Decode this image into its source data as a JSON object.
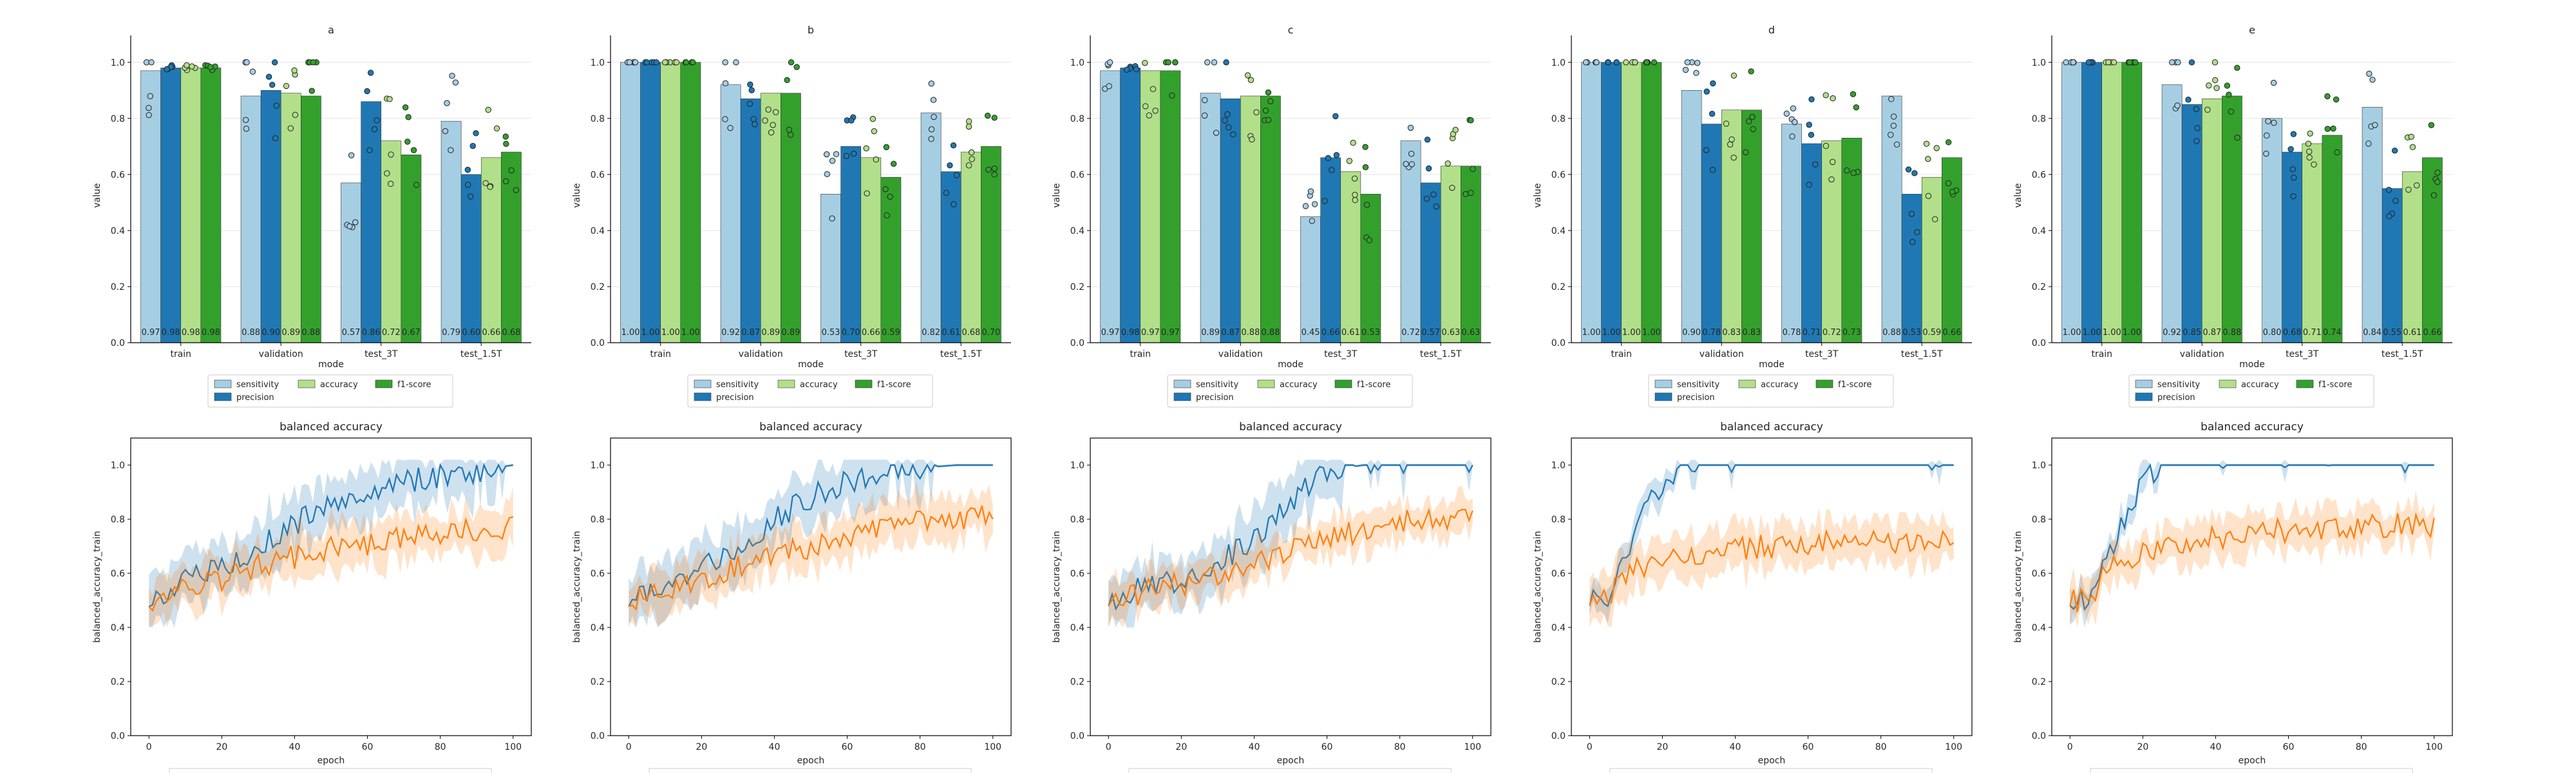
{
  "colors": {
    "sensitivity": "#a6cee3",
    "precision": "#1f78b4",
    "accuracy": "#b2df8a",
    "f1-score": "#33a02c",
    "line_train": "#1f77b4",
    "line_test": "#ff7f0e"
  },
  "bar_axes": {
    "ylabel": "value",
    "xlabel": "mode",
    "categories": [
      "train",
      "validation",
      "test_3T",
      "test_1.5T"
    ],
    "yticks": [
      "0.0",
      "0.2",
      "0.4",
      "0.6",
      "0.8",
      "1.0"
    ],
    "legend": [
      "sensitivity",
      "precision",
      "accuracy",
      "f1-score"
    ]
  },
  "line_axes": {
    "title": "balanced accuracy",
    "xlabel": "epoch",
    "ylabel": "balanced_accuracy_train",
    "xticks": [
      "0",
      "20",
      "40",
      "60",
      "80",
      "100"
    ],
    "yticks": [
      "0.0",
      "0.2",
      "0.4",
      "0.6",
      "0.8",
      "1.0"
    ]
  },
  "chart_data": [
    {
      "type": "bar",
      "panel": "a",
      "title": "a",
      "ylim": [
        0,
        1.05
      ],
      "categories": [
        "train",
        "validation",
        "test_3T",
        "test_1.5T"
      ],
      "series": [
        {
          "name": "sensitivity",
          "values": [
            0.97,
            0.88,
            0.57,
            0.79
          ]
        },
        {
          "name": "precision",
          "values": [
            0.98,
            0.9,
            0.86,
            0.6
          ]
        },
        {
          "name": "accuracy",
          "values": [
            0.98,
            0.89,
            0.72,
            0.66
          ]
        },
        {
          "name": "f1-score",
          "values": [
            0.98,
            0.88,
            0.67,
            0.68
          ]
        }
      ],
      "labels": [
        "0.97",
        "0.98",
        "0.98",
        "0.98",
        "0.88",
        "0.90",
        "0.89",
        "0.88",
        "0.57",
        "0.86",
        "0.72",
        "0.67",
        "0.79",
        "0.60",
        "0.66",
        "0.68"
      ]
    },
    {
      "type": "bar",
      "panel": "b",
      "title": "b",
      "ylim": [
        0,
        1.05
      ],
      "categories": [
        "train",
        "validation",
        "test_3T",
        "test_1.5T"
      ],
      "series": [
        {
          "name": "sensitivity",
          "values": [
            1.0,
            0.92,
            0.53,
            0.82
          ]
        },
        {
          "name": "precision",
          "values": [
            1.0,
            0.87,
            0.7,
            0.61
          ]
        },
        {
          "name": "accuracy",
          "values": [
            1.0,
            0.89,
            0.66,
            0.68
          ]
        },
        {
          "name": "f1-score",
          "values": [
            1.0,
            0.89,
            0.59,
            0.7
          ]
        }
      ],
      "labels": [
        "1.00",
        "1.00",
        "1.00",
        "1.00",
        "0.92",
        "0.87",
        "0.89",
        "0.89",
        "0.53",
        "0.70",
        "0.66",
        "0.59",
        "0.82",
        "0.61",
        "0.68",
        "0.70"
      ]
    },
    {
      "type": "bar",
      "panel": "c",
      "title": "c",
      "ylim": [
        0,
        1.05
      ],
      "categories": [
        "train",
        "validation",
        "test_3T",
        "test_1.5T"
      ],
      "series": [
        {
          "name": "sensitivity",
          "values": [
            0.97,
            0.89,
            0.45,
            0.72
          ]
        },
        {
          "name": "precision",
          "values": [
            0.98,
            0.87,
            0.66,
            0.57
          ]
        },
        {
          "name": "accuracy",
          "values": [
            0.97,
            0.88,
            0.61,
            0.63
          ]
        },
        {
          "name": "f1-score",
          "values": [
            0.97,
            0.88,
            0.53,
            0.63
          ]
        }
      ],
      "labels": [
        "0.97",
        "0.98",
        "0.97",
        "0.97",
        "0.89",
        "0.87",
        "0.88",
        "0.88",
        "0.45",
        "0.66",
        "0.61",
        "0.53",
        "0.72",
        "0.57",
        "0.63",
        "0.63"
      ]
    },
    {
      "type": "bar",
      "panel": "d",
      "title": "d",
      "ylim": [
        0,
        1.05
      ],
      "categories": [
        "train",
        "validation",
        "test_3T",
        "test_1.5T"
      ],
      "series": [
        {
          "name": "sensitivity",
          "values": [
            1.0,
            0.9,
            0.78,
            0.88
          ]
        },
        {
          "name": "precision",
          "values": [
            1.0,
            0.78,
            0.71,
            0.53
          ]
        },
        {
          "name": "accuracy",
          "values": [
            1.0,
            0.83,
            0.72,
            0.59
          ]
        },
        {
          "name": "f1-score",
          "values": [
            1.0,
            0.83,
            0.73,
            0.66
          ]
        }
      ],
      "labels": [
        "1.00",
        "1.00",
        "1.00",
        "1.00",
        "0.90",
        "0.78",
        "0.83",
        "0.83",
        "0.78",
        "0.71",
        "0.72",
        "0.73",
        "0.88",
        "0.53",
        "0.59",
        "0.66"
      ]
    },
    {
      "type": "bar",
      "panel": "e",
      "title": "e",
      "ylim": [
        0,
        1.05
      ],
      "categories": [
        "train",
        "validation",
        "test_3T",
        "test_1.5T"
      ],
      "series": [
        {
          "name": "sensitivity",
          "values": [
            1.0,
            0.92,
            0.8,
            0.84
          ]
        },
        {
          "name": "precision",
          "values": [
            1.0,
            0.85,
            0.68,
            0.55
          ]
        },
        {
          "name": "accuracy",
          "values": [
            1.0,
            0.87,
            0.71,
            0.61
          ]
        },
        {
          "name": "f1-score",
          "values": [
            1.0,
            0.88,
            0.74,
            0.66
          ]
        }
      ],
      "labels": [
        "1.00",
        "1.00",
        "1.00",
        "1.00",
        "0.92",
        "0.85",
        "0.87",
        "0.88",
        "0.80",
        "0.68",
        "0.71",
        "0.74",
        "0.84",
        "0.55",
        "0.61",
        "0.66"
      ]
    },
    {
      "type": "line",
      "panel": "a",
      "title": "balanced accuracy",
      "xlim": [
        -5,
        105
      ],
      "ylim": [
        0,
        1.1
      ],
      "series": [
        {
          "key": "train",
          "x": [
            0,
            10,
            20,
            30,
            40,
            50,
            60,
            70,
            80,
            90,
            100
          ],
          "values": [
            0.5,
            0.57,
            0.62,
            0.7,
            0.78,
            0.86,
            0.9,
            0.94,
            0.96,
            0.98,
            1.0
          ],
          "band": 0.1
        },
        {
          "key": "test",
          "x": [
            0,
            10,
            20,
            30,
            40,
            50,
            60,
            70,
            80,
            90,
            100
          ],
          "values": [
            0.5,
            0.54,
            0.58,
            0.63,
            0.66,
            0.69,
            0.71,
            0.73,
            0.74,
            0.76,
            0.77
          ],
          "band": 0.08
        }
      ]
    },
    {
      "type": "line",
      "panel": "b",
      "title": "balanced accuracy",
      "xlim": [
        -5,
        105
      ],
      "ylim": [
        0,
        1.1
      ],
      "series": [
        {
          "key": "train",
          "x": [
            0,
            10,
            20,
            30,
            40,
            50,
            60,
            70,
            80,
            90,
            100
          ],
          "values": [
            0.5,
            0.56,
            0.63,
            0.7,
            0.8,
            0.88,
            0.94,
            0.98,
            0.99,
            1.0,
            1.0
          ],
          "band": 0.1
        },
        {
          "key": "test",
          "x": [
            0,
            10,
            20,
            30,
            40,
            50,
            60,
            70,
            80,
            90,
            100
          ],
          "values": [
            0.5,
            0.54,
            0.58,
            0.62,
            0.66,
            0.7,
            0.74,
            0.77,
            0.79,
            0.8,
            0.81
          ],
          "band": 0.08
        }
      ]
    },
    {
      "type": "line",
      "panel": "c",
      "title": "balanced accuracy",
      "xlim": [
        -5,
        105
      ],
      "ylim": [
        0,
        1.1
      ],
      "series": [
        {
          "key": "train",
          "x": [
            0,
            10,
            20,
            30,
            40,
            50,
            60,
            70,
            80,
            90,
            100
          ],
          "values": [
            0.5,
            0.55,
            0.58,
            0.64,
            0.72,
            0.86,
            0.98,
            1.0,
            1.0,
            1.0,
            1.0
          ],
          "band": 0.1
        },
        {
          "key": "test",
          "x": [
            0,
            10,
            20,
            30,
            40,
            50,
            60,
            70,
            80,
            90,
            100
          ],
          "values": [
            0.5,
            0.53,
            0.56,
            0.6,
            0.64,
            0.68,
            0.72,
            0.76,
            0.79,
            0.8,
            0.8
          ],
          "band": 0.07
        }
      ]
    },
    {
      "type": "line",
      "panel": "d",
      "title": "balanced accuracy",
      "xlim": [
        -5,
        105
      ],
      "ylim": [
        0,
        1.1
      ],
      "series": [
        {
          "key": "train",
          "x": [
            0,
            5,
            10,
            15,
            20,
            25,
            30,
            40,
            50,
            60,
            70,
            80,
            90,
            100
          ],
          "values": [
            0.5,
            0.5,
            0.68,
            0.82,
            0.94,
            1.0,
            1.0,
            1.0,
            1.0,
            1.0,
            1.0,
            1.0,
            1.0,
            1.0
          ],
          "band": 0.05
        },
        {
          "key": "test",
          "x": [
            0,
            5,
            10,
            15,
            20,
            30,
            40,
            50,
            60,
            70,
            80,
            90,
            100
          ],
          "values": [
            0.5,
            0.5,
            0.6,
            0.63,
            0.66,
            0.67,
            0.69,
            0.7,
            0.71,
            0.72,
            0.72,
            0.72,
            0.73
          ],
          "band": 0.08
        }
      ]
    },
    {
      "type": "line",
      "panel": "e",
      "title": "balanced accuracy",
      "xlim": [
        -5,
        105
      ],
      "ylim": [
        0,
        1.1
      ],
      "series": [
        {
          "key": "train",
          "x": [
            0,
            5,
            10,
            15,
            20,
            25,
            30,
            40,
            50,
            60,
            70,
            80,
            90,
            100
          ],
          "values": [
            0.5,
            0.5,
            0.64,
            0.8,
            0.94,
            1.0,
            1.0,
            1.0,
            1.0,
            1.0,
            1.0,
            1.0,
            1.0,
            1.0
          ],
          "band": 0.05
        },
        {
          "key": "test",
          "x": [
            0,
            5,
            10,
            15,
            20,
            30,
            40,
            50,
            60,
            70,
            80,
            90,
            100
          ],
          "values": [
            0.5,
            0.5,
            0.6,
            0.65,
            0.68,
            0.71,
            0.73,
            0.75,
            0.76,
            0.77,
            0.77,
            0.78,
            0.78
          ],
          "band": 0.07
        }
      ]
    }
  ]
}
